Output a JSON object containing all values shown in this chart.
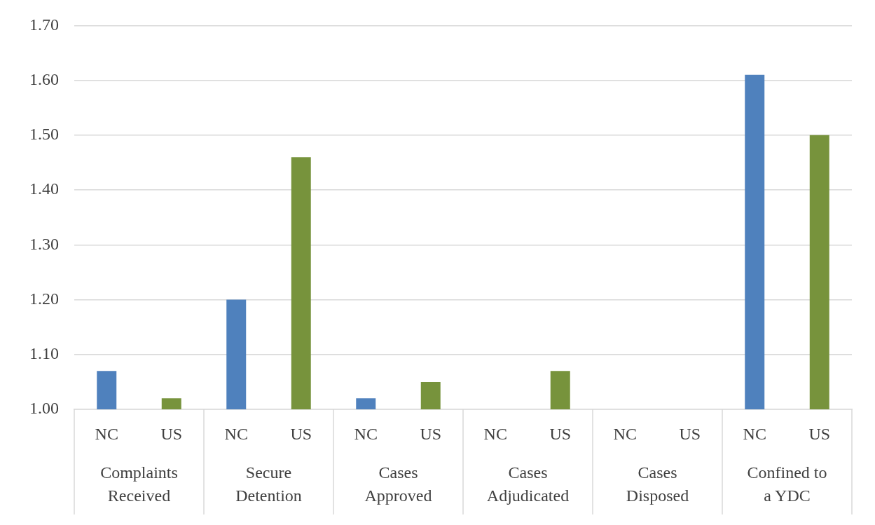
{
  "chart_data": {
    "type": "bar",
    "categories": [
      "NC",
      "US",
      "NC",
      "US",
      "NC",
      "US",
      "NC",
      "US",
      "NC",
      "US",
      "NC",
      "US"
    ],
    "values": [
      1.07,
      1.02,
      1.2,
      1.46,
      1.02,
      1.05,
      null,
      1.07,
      null,
      null,
      1.61,
      1.5
    ],
    "colors": [
      "#4f81bd",
      "#77933c",
      "#4f81bd",
      "#77933c",
      "#4f81bd",
      "#77933c",
      "#4f81bd",
      "#77933c",
      "#4f81bd",
      "#77933c",
      "#4f81bd",
      "#77933c"
    ],
    "annotations": [
      "Complaints Received",
      "Secure Detention",
      "Cases Approved",
      "Cases Adjudicated",
      "Cases Disposed",
      "Confined to a YDC"
    ],
    "ylim": [
      1.0,
      1.7
    ],
    "yticks": [
      {
        "value": 1.0,
        "label": "1.00"
      },
      {
        "value": 1.1,
        "label": "1.10"
      },
      {
        "value": 1.2,
        "label": "1.20"
      },
      {
        "value": 1.3,
        "label": "1.30"
      },
      {
        "value": 1.4,
        "label": "1.40"
      },
      {
        "value": 1.5,
        "label": "1.50"
      },
      {
        "value": 1.6,
        "label": "1.60"
      },
      {
        "value": 1.7,
        "label": "1.70"
      }
    ],
    "grid": "y",
    "legend": false
  }
}
